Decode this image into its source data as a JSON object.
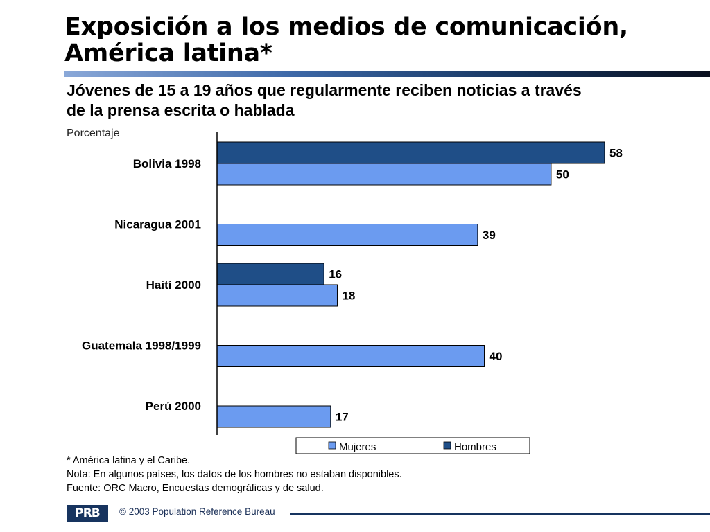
{
  "title": {
    "line1": "Exposición a los medios de comunicación,",
    "line2": "América latina*"
  },
  "subtitle": {
    "line1": "Jóvenes de 15 a 19 años que regularmente reciben noticias a través",
    "line2": "de la prensa escrita o hablada"
  },
  "chart_data": {
    "type": "bar",
    "orientation": "horizontal",
    "ylabel": "Porcentaje",
    "categories": [
      "Bolivia 1998",
      "Nicaragua 2001",
      "Haití 2000",
      "Guatemala 1998/1999",
      "Perú 2000"
    ],
    "series": [
      {
        "name": "Hombres",
        "color": "#1f4e87",
        "values": [
          58,
          null,
          16,
          null,
          null
        ]
      },
      {
        "name": "Mujeres",
        "color": "#6b9bf0",
        "values": [
          50,
          39,
          18,
          40,
          17
        ]
      }
    ],
    "legend_order": [
      "Mujeres",
      "Hombres"
    ],
    "legend_position": "bottom",
    "xlim": [
      0,
      60
    ],
    "grid": false
  },
  "notes": {
    "line1": "* América latina y el Caribe.",
    "line2": "Nota: En algunos países, los datos de los hombres no estaban disponibles.",
    "line3": "Fuente: ORC Macro, Encuestas demográficas y de salud."
  },
  "footer": {
    "logo": "PRB",
    "copyright": "© 2003 Population Reference Bureau"
  }
}
